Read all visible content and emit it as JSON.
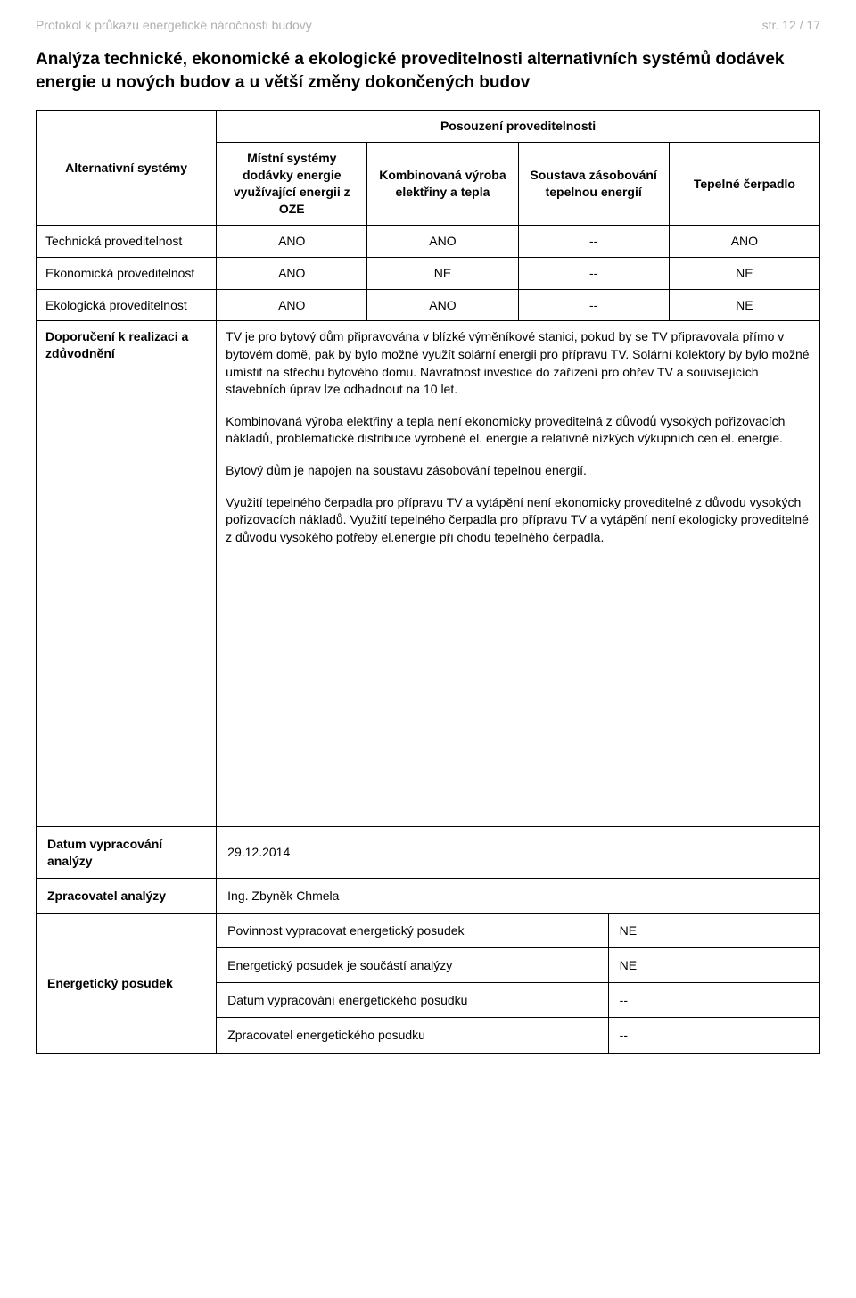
{
  "header": {
    "left": "Protokol k průkazu energetické náročnosti budovy",
    "right": "str. 12 / 17"
  },
  "section_title": "Analýza technické, ekonomické a ekologické proveditelnosti alternativních systémů dodávek energie u nových budov a u větší změny dokončených budov",
  "table": {
    "top_header": "Posouzení proveditelnosti",
    "row_header_label": "Alternativní systémy",
    "col_headers": [
      "Místní systémy dodávky energie využívající energii z OZE",
      "Kombinovaná výroba elektřiny a tepla",
      "Soustava zásobování tepelnou energií",
      "Tepelné čerpadlo"
    ],
    "rows": [
      {
        "label": "Technická proveditelnost",
        "cells": [
          "ANO",
          "ANO",
          "--",
          "ANO"
        ]
      },
      {
        "label": "Ekonomická proveditelnost",
        "cells": [
          "ANO",
          "NE",
          "--",
          "NE"
        ]
      },
      {
        "label": "Ekologická proveditelnost",
        "cells": [
          "ANO",
          "ANO",
          "--",
          "NE"
        ]
      }
    ],
    "justify_label": "Doporučení k realizaci a zdůvodnění",
    "justify_paragraphs": [
      "TV je pro bytový dům připravována v blízké výměníkové stanici, pokud by se TV připravovala přímo v bytovém domě, pak by bylo možné využít solární energii pro přípravu TV. Solární kolektory by bylo možné umístit na střechu bytového domu. Návratnost investice do zařízení pro ohřev TV a souvisejících stavebních úprav lze odhadnout na 10 let.",
      "Kombinovaná výroba elektřiny a tepla není ekonomicky proveditelná z důvodů vysokých pořizovacích nákladů, problematické distribuce vyrobené el. energie a relativně nízkých výkupních cen el. energie.",
      "Bytový dům je napojen na soustavu zásobování tepelnou energií.",
      "Využití tepelného čerpadla pro přípravu TV a vytápění není ekonomicky proveditelné z důvodu vysokých pořizovacích nákladů. Využití tepelného čerpadla pro přípravu TV a vytápění není ekologicky proveditelné z důvodu vysokého potřeby el.energie při chodu tepelného čerpadla."
    ]
  },
  "footer": {
    "rows": [
      {
        "label": "Datum vypracování analýzy",
        "value": "29.12.2014"
      },
      {
        "label": "Zpracovatel analýzy",
        "value": "Ing. Zbyněk Chmela"
      }
    ],
    "posudek_label": "Energetický posudek",
    "posudek_rows": [
      {
        "label": "Povinnost vypracovat energetický posudek",
        "value": "NE"
      },
      {
        "label": "Energetický posudek je součástí analýzy",
        "value": "NE"
      },
      {
        "label": "Datum vypracování energetického posudku",
        "value": "--"
      },
      {
        "label": "Zpracovatel energetického posudku",
        "value": "--"
      }
    ]
  }
}
